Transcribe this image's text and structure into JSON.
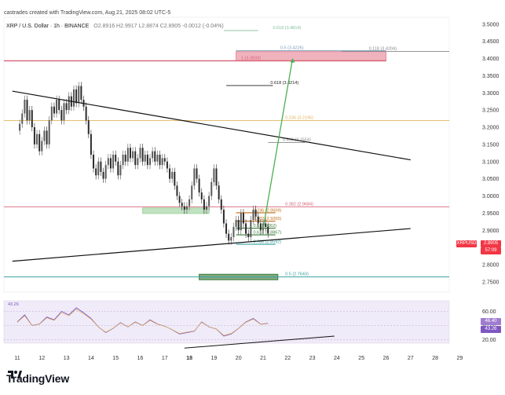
{
  "header": {
    "author_line": "castrades created with TradingView.com, Aug 21, 2025 08:02 UTC-5",
    "symbol_line": "XRP / U.S. Dollar · 1h · BINANCE",
    "ohlc": "O2.8916 H2.9917 L2.8874 C2.8905 -0.0012 (-0.04%)"
  },
  "chart_data": {
    "type": "line",
    "title": "",
    "price_axis": {
      "ylim": [
        2.72,
        3.52
      ],
      "ticks": [
        "3.5000",
        "3.4500",
        "3.4000",
        "3.3500",
        "3.3000",
        "3.2500",
        "3.2000",
        "3.1500",
        "3.1000",
        "3.0500",
        "3.0000",
        "2.9500",
        "2.9000",
        "2.8500",
        "2.8000",
        "2.7500"
      ]
    },
    "x_axis": {
      "ticks": [
        "11",
        "12",
        "13",
        "14",
        "15",
        "16",
        "17",
        "18",
        "19",
        "20",
        "21",
        "22",
        "23",
        "24",
        "25",
        "26",
        "27",
        "28",
        "29"
      ],
      "bold": [
        "18"
      ]
    },
    "price_series": {
      "name": "XRPUSD",
      "x": [
        11.0,
        11.1,
        11.2,
        11.3,
        11.4,
        11.5,
        11.6,
        11.7,
        11.8,
        11.9,
        12.0,
        12.1,
        12.2,
        12.3,
        12.4,
        12.5,
        12.6,
        12.7,
        12.8,
        12.9,
        13.0,
        13.1,
        13.2,
        13.3,
        13.4,
        13.5,
        13.6,
        13.7,
        13.8,
        13.9,
        14.0,
        14.1,
        14.2,
        14.3,
        14.4,
        14.5,
        14.6,
        14.7,
        14.8,
        14.9,
        15.0,
        15.1,
        15.2,
        15.3,
        15.4,
        15.5,
        15.6,
        15.7,
        15.8,
        15.9,
        16.0,
        16.1,
        16.2,
        16.3,
        16.4,
        16.5,
        16.6,
        16.7,
        16.8,
        16.9,
        17.0,
        17.1,
        17.2,
        17.3,
        17.4,
        17.5,
        17.6,
        17.7,
        17.8,
        17.9,
        18.0,
        18.1,
        18.2,
        18.3,
        18.4,
        18.5,
        18.6,
        18.7,
        18.8,
        18.9,
        19.0,
        19.1,
        19.2,
        19.3,
        19.4,
        19.5,
        19.6,
        19.7,
        19.8,
        19.9,
        20.0,
        20.1,
        20.2,
        20.3,
        20.4,
        20.5,
        20.6,
        20.7,
        20.8,
        20.9,
        21.0,
        21.1,
        21.2
      ],
      "y": [
        3.19,
        3.21,
        3.24,
        3.28,
        3.22,
        3.25,
        3.2,
        3.15,
        3.18,
        3.13,
        3.16,
        3.19,
        3.15,
        3.22,
        3.26,
        3.24,
        3.28,
        3.25,
        3.22,
        3.27,
        3.25,
        3.29,
        3.26,
        3.31,
        3.27,
        3.32,
        3.28,
        3.26,
        3.22,
        3.18,
        3.12,
        3.08,
        3.06,
        3.1,
        3.07,
        3.05,
        3.09,
        3.11,
        3.08,
        3.12,
        3.1,
        3.06,
        3.09,
        3.12,
        3.1,
        3.14,
        3.11,
        3.13,
        3.09,
        3.11,
        3.14,
        3.1,
        3.12,
        3.09,
        3.11,
        3.13,
        3.1,
        3.12,
        3.09,
        3.11,
        3.1,
        3.08,
        3.05,
        3.07,
        3.03,
        3.0,
        2.98,
        2.97,
        2.96,
        2.97,
        2.99,
        3.03,
        3.08,
        3.05,
        3.01,
        2.99,
        2.96,
        2.97,
        3.0,
        3.04,
        3.08,
        3.03,
        2.99,
        2.96,
        2.92,
        2.89,
        2.87,
        2.88,
        2.91,
        2.93,
        2.9,
        2.95,
        2.92,
        2.89,
        2.88,
        2.93,
        2.96,
        2.94,
        2.92,
        2.9,
        2.92,
        2.91,
        2.8905
      ]
    },
    "current_price": {
      "symbol": "XRPUSD",
      "price": "2.8905",
      "countdown": "57:09"
    },
    "fib_upper": [
      {
        "label": "0.618 (3.4814)",
        "value": 3.4814,
        "color": "#7fbf9a"
      },
      {
        "label": "0.5 (3.4226)",
        "value": 3.4226,
        "color": "#7a9bb8"
      },
      {
        "label": "0.118 (3.4204)",
        "value": 3.4204,
        "color": "#888888"
      },
      {
        "label": "1 (3.3933)",
        "value": 3.3933,
        "color": "#d66075"
      },
      {
        "label": "0.618 (3.3214)",
        "value": 3.3214,
        "color": "#222222"
      },
      {
        "label": "0.236 (3.2195)",
        "value": 3.2195,
        "color": "#e0b45c"
      },
      {
        "label": "0.618 (3.1554)",
        "value": 3.1554,
        "color": "#888888"
      },
      {
        "label": "0.382 (2.9684)",
        "value": 2.9684,
        "color": "#d66075"
      },
      {
        "label": "0.5 (2.7643)",
        "value": 2.7643,
        "color": "#3ba0a0"
      }
    ],
    "fib_lower": [
      {
        "label": "0.236 (2.9509)",
        "value": 2.9509,
        "color": "#c06a14"
      },
      {
        "label": "0.382 (2.9265)",
        "value": 2.9265,
        "color": "#c06a14"
      },
      {
        "label": "0.5 (2.9062)",
        "value": 2.9062,
        "color": "#3c7d3c"
      },
      {
        "label": "0.618 (2.8867)",
        "value": 2.8867,
        "color": "#3c7d3c"
      },
      {
        "label": "0.786 (2.8592)",
        "value": 2.8592,
        "color": "#3ba0a0"
      }
    ],
    "trendlines": [
      {
        "name": "upper-resistance",
        "from": [
          10.8,
          3.305
        ],
        "to": [
          27.0,
          3.105
        ],
        "color": "#111111"
      },
      {
        "name": "lower-support",
        "from": [
          10.8,
          2.81
        ],
        "to": [
          27.0,
          2.905
        ],
        "color": "#111111"
      }
    ],
    "zones": [
      {
        "name": "target-zone",
        "x": [
          19.9,
          26.0
        ],
        "y": [
          3.393,
          3.42
        ],
        "color": "#e88a9a"
      },
      {
        "name": "demand-zone-1",
        "x": [
          16.1,
          18.8
        ],
        "y": [
          2.952,
          2.965
        ],
        "color": "#9fd39f"
      },
      {
        "name": "demand-zone-2",
        "x": [
          18.4,
          21.6
        ],
        "y": [
          2.762,
          2.772
        ],
        "color": "#3c7d3c"
      }
    ],
    "projection": {
      "from": [
        21.0,
        2.905
      ],
      "to": [
        22.2,
        3.4
      ],
      "color": "#4caf50"
    },
    "rsi": {
      "ylim": [
        15,
        75
      ],
      "ticks": [
        "60.00",
        "40.00",
        "20.00"
      ],
      "badges": [
        "46.40",
        "43.26"
      ],
      "header_label": "43.26",
      "x": [
        11.0,
        11.3,
        11.6,
        11.9,
        12.2,
        12.5,
        12.8,
        13.1,
        13.4,
        13.7,
        14.0,
        14.3,
        14.6,
        14.9,
        15.2,
        15.5,
        15.8,
        16.1,
        16.4,
        16.7,
        17.0,
        17.3,
        17.6,
        17.9,
        18.2,
        18.5,
        18.8,
        19.1,
        19.4,
        19.7,
        20.0,
        20.3,
        20.6,
        20.9,
        21.2
      ],
      "y": [
        45,
        55,
        40,
        42,
        52,
        48,
        60,
        55,
        65,
        58,
        50,
        38,
        30,
        36,
        44,
        38,
        45,
        40,
        48,
        42,
        39,
        34,
        28,
        30,
        32,
        45,
        38,
        35,
        25,
        28,
        36,
        45,
        50,
        42,
        43
      ]
    }
  }
}
